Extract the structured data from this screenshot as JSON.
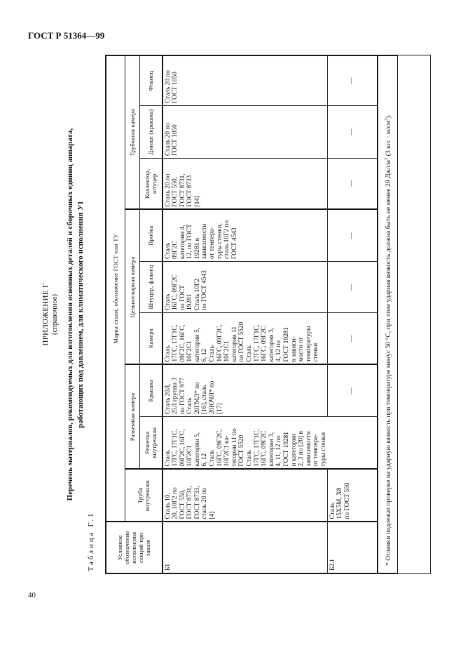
{
  "header": {
    "doc_code": "ГОСТ Р 51364—99",
    "page_number": "40"
  },
  "appendix": {
    "title": "ПРИЛОЖЕНИЕ Г",
    "status": "(справочное)",
    "heading_line1": "Перечень материалов, рекомендуемых для изготовления основных деталей и сборочных единиц аппарата,",
    "heading_line2": "работающих под давлением, для климатического исполнения У1",
    "table_label": "Таблица Г.1"
  },
  "table": {
    "col_designation": "Условное обозначение исполнения секций при заказе",
    "group_main": "Марка стали, обозначение ГОСТ или ТУ",
    "col_tube": "Труба внутренняя",
    "group_split": "Разъемная камера",
    "col_grid": "Решетка внутренняя",
    "col_cover": "Крышка",
    "group_welded": "Цельносварная камера",
    "col_chamber": "Камера",
    "col_fitting": "Штуцер, фланец",
    "col_plug": "Пробка",
    "group_tubular": "Трубчатая камера",
    "col_collector": "Коллектор, штуцер",
    "col_bottom": "Днище (крышка)",
    "col_flange": "Фланец",
    "rows": [
      {
        "designation": "Б1",
        "tube": "Сталь 10,\n20, 10Г2 по\nГОСТ 550,\nГОСТ 8731,\nГОСТ 8733,\nсталь 20 по\n[4]",
        "grid": "Сталь\n17ГС, 17Г1С,\n09Г2С, 16ГС,\n10Г2С1\nкатегории 5,\n6, 12\nСталь\n16ГС, 09Г2С,\n10Г2С1 ка-\nтегории 11 по\nГОСТ 5520\nСталь\n17ГС, 17Г1С,\n16ГС, 09Г2С\nкатегории 3,\n4, 11, 12 по\nГОСТ 19281\nи категории\n2, 3 по [20] в\nзависимости\nот темпера-\nтуры стенки",
        "cover": "Сталь 20Л,\n25Л группа 3\nпо ГОСТ 977\nСталь\n20ГМЛ* по\n[16], сталь\n20ЮЧЛ* по\n[17]",
        "chamber": "Сталь\n17ГС, 17Г1С,\n09Г2С, 16ГС,\n10Г2С1\nкатегории 5,\n6, 12\nСталь\n16ГС, 09Г2С,\n10Г2С1\nкатегории 11\nпо ГОСТ 5520\nСталь\n17ГС, 17Г1С,\n16ГС, 09Г2С\nкатегории 3,\n4, 12 по\nГОСТ 19281\nв зависи-\nмости от\nтемпературы\nстенки",
        "fitting": "Сталь\n16ГС, 09Г2С\nпо ГОСТ\n19281\nСталь 10Г2\nпо ГОСТ 4543",
        "plug": "Сталь\n09Г2С\nкатегории 4,\n12, по ГОСТ\n19281 в\nзависимости\nот темпера-\nтуры стенки,\nсталь 10Г2 по\nГОСТ 4543",
        "collector": "Сталь 20 по\nГОСТ 550,\nГОСТ 8731,\nГОСТ 8733\n[14]",
        "bottom": "Сталь 20 по\nГОСТ 1050",
        "flange": "Сталь 20 по\nГОСТ 1050"
      },
      {
        "designation": "Б2.1",
        "tube": "Сталь\n15Х5М, Х8\nпо ГОСТ 550",
        "cover": "—",
        "chamber": "—",
        "fitting": "—",
        "plug": "—",
        "collector": "—",
        "bottom": "—",
        "flange": "—"
      }
    ],
    "footnote_text": "* Отливки подлежат проверке на ударную вязкость при температуре минус 50 °С, при этом ударная вязкость должна быть не менее 29 Дж/см",
    "footnote_sup": "2",
    "footnote_text2": " (3 кгс · м/см",
    "footnote_sup2": "2",
    "footnote_end": ")."
  }
}
